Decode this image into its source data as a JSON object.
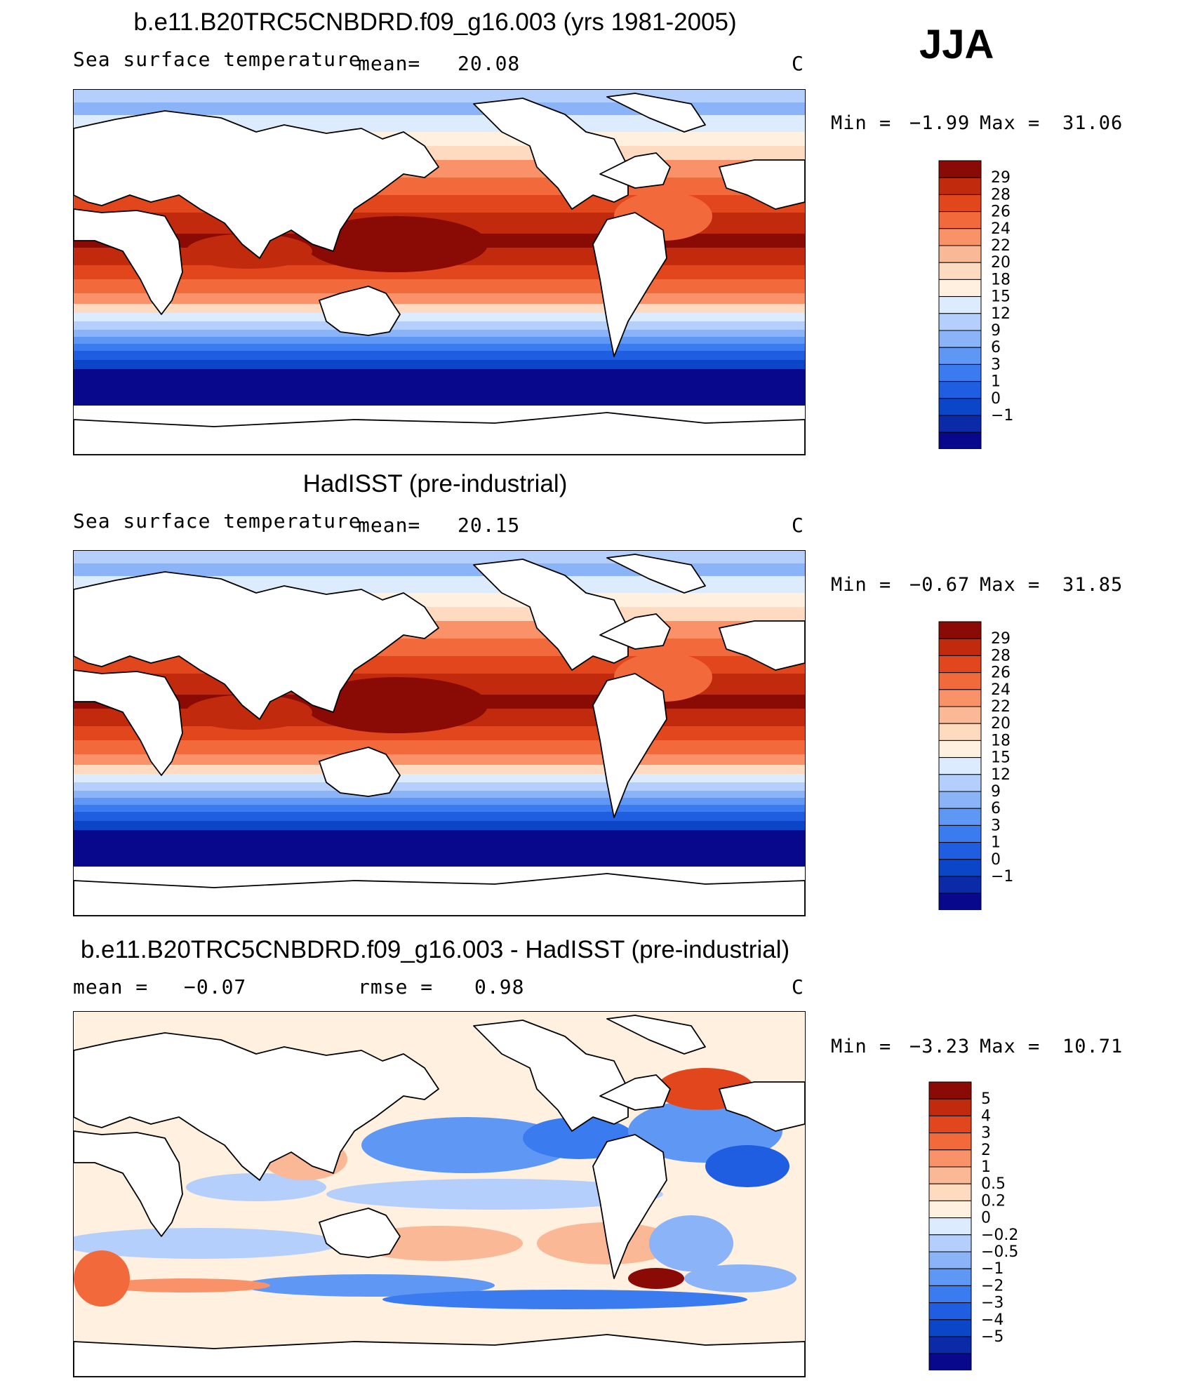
{
  "season": "JJA",
  "palette_sst": [
    "#08088c",
    "#0a2aa8",
    "#0b45c8",
    "#1f5ee0",
    "#3a7cf0",
    "#5f97f5",
    "#8ab3f8",
    "#b4cffb",
    "#dcebfd",
    "#fff0df",
    "#fddac0",
    "#fbb896",
    "#f99268",
    "#f26a3b",
    "#e2461c",
    "#c12a0c",
    "#8a0a06"
  ],
  "palette_diff": [
    "#08088c",
    "#0a2aa8",
    "#0b45c8",
    "#1f5ee0",
    "#3a7cf0",
    "#5f97f5",
    "#8ab3f8",
    "#b4cffb",
    "#dcebfd",
    "#fff0df",
    "#fddac0",
    "#fbb896",
    "#f99268",
    "#f26a3b",
    "#e2461c",
    "#c12a0c",
    "#8a0a06"
  ],
  "panels": [
    {
      "title": "b.e11.B20TRC5CNBDRD.f09_g16.003 (yrs 1981-2005)",
      "left_label": "Sea surface temperature",
      "mean_label": "mean=",
      "mean_value": "20.08",
      "units": "C",
      "min_label": "Min =",
      "min_value": "−1.99",
      "max_label": "Max =",
      "max_value": "31.06",
      "colorbar_labels": [
        "29",
        "28",
        "26",
        "24",
        "22",
        "20",
        "18",
        "15",
        "12",
        "9",
        "6",
        "3",
        "1",
        "0",
        "−1"
      ]
    },
    {
      "title": "HadISST (pre-industrial)",
      "left_label": "Sea surface temperature",
      "mean_label": "mean=",
      "mean_value": "20.15",
      "units": "C",
      "min_label": "Min =",
      "min_value": "−0.67",
      "max_label": "Max =",
      "max_value": "31.85",
      "colorbar_labels": [
        "29",
        "28",
        "26",
        "24",
        "22",
        "20",
        "18",
        "15",
        "12",
        "9",
        "6",
        "3",
        "1",
        "0",
        "−1"
      ]
    },
    {
      "title": "b.e11.B20TRC5CNBDRD.f09_g16.003 - HadISST (pre-industrial)",
      "left_label": "mean =",
      "mean_label": "−0.07",
      "rmse_label": "rmse =",
      "rmse_value": "0.98",
      "units": "C",
      "min_label": "Min =",
      "min_value": "−3.23",
      "max_label": "Max =",
      "max_value": "10.71",
      "colorbar_labels": [
        "5",
        "4",
        "3",
        "2",
        "1",
        "0.5",
        "0.2",
        "0",
        "−0.2",
        "−0.5",
        "−1",
        "−2",
        "−3",
        "−4",
        "−5"
      ]
    }
  ]
}
